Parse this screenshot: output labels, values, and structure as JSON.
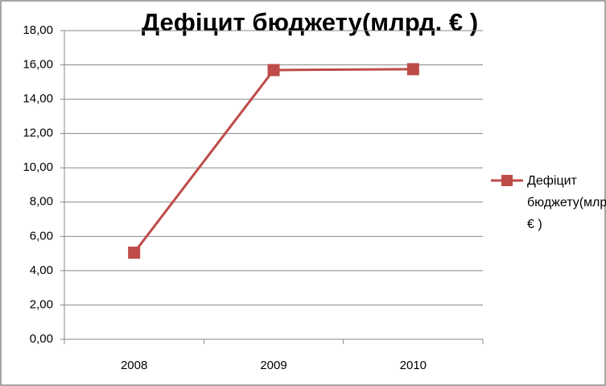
{
  "chart_data": {
    "type": "line",
    "title": "Дефіцит бюджету(млрд. € )",
    "categories": [
      "2008",
      "2009",
      "2010"
    ],
    "series": [
      {
        "name": "Дефіцит бюджету(млрд. € )",
        "color": "#be4b48",
        "values": [
          5.05,
          15.7,
          15.75
        ]
      }
    ],
    "ylim": [
      0,
      18
    ],
    "yticks": [
      {
        "value": 0,
        "label": "0,00"
      },
      {
        "value": 2,
        "label": "2,00"
      },
      {
        "value": 4,
        "label": "4,00"
      },
      {
        "value": 6,
        "label": "6,00"
      },
      {
        "value": 8,
        "label": "8,00"
      },
      {
        "value": 10,
        "label": "10,00"
      },
      {
        "value": 12,
        "label": "12,00"
      },
      {
        "value": 14,
        "label": "14,00"
      },
      {
        "value": 16,
        "label": "16,00"
      },
      {
        "value": 18,
        "label": "18,00"
      }
    ],
    "grid": true,
    "legend": "right"
  }
}
